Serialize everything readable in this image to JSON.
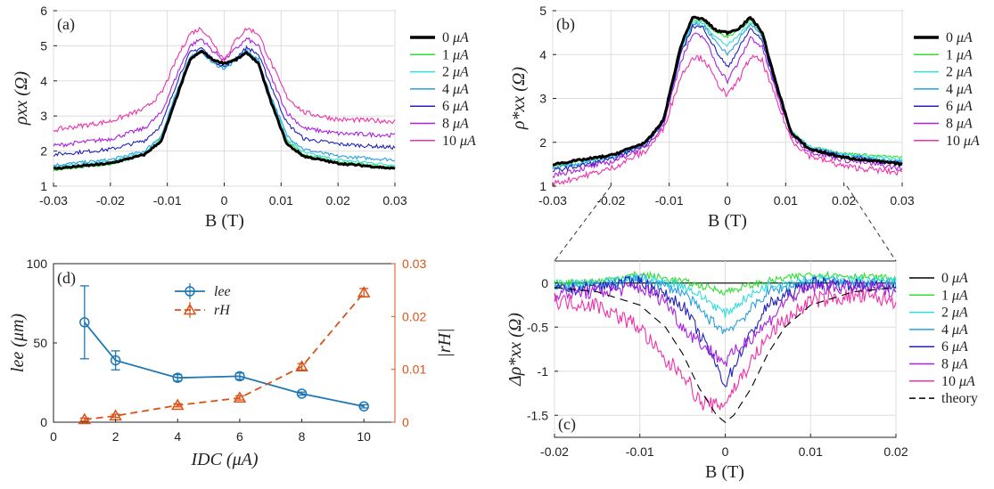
{
  "colors": {
    "c0": "#000000",
    "c1": "#33dd33",
    "c2": "#33dddd",
    "c4": "#2a9fdc",
    "c6": "#2222bb",
    "c8": "#aa22dd",
    "c10": "#ee33aa",
    "theory": "#000000",
    "lee": "#1f77b4",
    "rH": "#d95319",
    "grid": "#dddddd",
    "axis": "#222222"
  },
  "chart_data": [
    {
      "id": "a",
      "type": "line",
      "panel_label": "(a)",
      "xlabel": "B (T)",
      "ylabel": "ρxx (Ω)",
      "xlim": [
        -0.03,
        0.03
      ],
      "ylim": [
        1,
        6
      ],
      "xticks": [
        "-0.03",
        "-0.02",
        "-0.01",
        "0",
        "0.01",
        "0.02",
        "0.03"
      ],
      "yticks": [
        "1",
        "2",
        "3",
        "4",
        "5",
        "6"
      ],
      "series": [
        {
          "name": "0 μA",
          "label_num": "0",
          "label_unit": "μA",
          "color_key": "c0",
          "bold": true,
          "x": [
            -0.03,
            -0.02,
            -0.014,
            -0.011,
            -0.008,
            -0.006,
            -0.004,
            -0.002,
            0,
            0.002,
            0.004,
            0.006,
            0.008,
            0.011,
            0.014,
            0.02,
            0.03
          ],
          "y": [
            1.5,
            1.65,
            1.9,
            2.3,
            3.7,
            4.6,
            4.85,
            4.6,
            4.5,
            4.6,
            4.8,
            4.5,
            3.5,
            2.2,
            1.85,
            1.65,
            1.5
          ]
        },
        {
          "name": "1 μA",
          "label_num": "1",
          "label_unit": "μA",
          "color_key": "c1",
          "x": [
            -0.03,
            -0.02,
            -0.014,
            -0.011,
            -0.008,
            -0.006,
            -0.004,
            -0.002,
            0,
            0.002,
            0.004,
            0.006,
            0.008,
            0.011,
            0.014,
            0.02,
            0.03
          ],
          "y": [
            1.45,
            1.62,
            1.9,
            2.35,
            3.75,
            4.6,
            4.82,
            4.6,
            4.5,
            4.62,
            4.85,
            4.55,
            3.6,
            2.3,
            1.9,
            1.7,
            1.55
          ]
        },
        {
          "name": "2 μA",
          "label_num": "2",
          "label_unit": "μA",
          "color_key": "c2",
          "x": [
            -0.03,
            -0.02,
            -0.014,
            -0.011,
            -0.008,
            -0.006,
            -0.004,
            -0.002,
            0,
            0.002,
            0.004,
            0.006,
            0.008,
            0.011,
            0.014,
            0.02,
            0.03
          ],
          "y": [
            1.55,
            1.7,
            1.95,
            2.4,
            3.8,
            4.65,
            4.85,
            4.55,
            4.4,
            4.6,
            4.85,
            4.55,
            3.6,
            2.35,
            1.95,
            1.75,
            1.6
          ]
        },
        {
          "name": "4 μA",
          "label_num": "4",
          "label_unit": "μA",
          "color_key": "c4",
          "x": [
            -0.03,
            -0.02,
            -0.014,
            -0.011,
            -0.008,
            -0.006,
            -0.004,
            -0.002,
            0,
            0.002,
            0.004,
            0.006,
            0.008,
            0.011,
            0.014,
            0.02,
            0.03
          ],
          "y": [
            1.6,
            1.75,
            2.0,
            2.45,
            3.85,
            4.7,
            4.85,
            4.5,
            4.35,
            4.55,
            4.85,
            4.6,
            3.65,
            2.45,
            2.05,
            1.85,
            1.75
          ]
        },
        {
          "name": "6 μA",
          "label_num": "6",
          "label_unit": "μA",
          "color_key": "c6",
          "x": [
            -0.03,
            -0.02,
            -0.014,
            -0.011,
            -0.008,
            -0.006,
            -0.004,
            -0.002,
            0,
            0.002,
            0.004,
            0.006,
            0.008,
            0.011,
            0.014,
            0.02,
            0.03
          ],
          "y": [
            1.9,
            2.05,
            2.3,
            2.75,
            4.1,
            4.8,
            4.95,
            4.6,
            4.4,
            4.65,
            4.95,
            4.75,
            3.95,
            2.8,
            2.35,
            2.2,
            2.1
          ]
        },
        {
          "name": "8 μA",
          "label_num": "8",
          "label_unit": "μA",
          "color_key": "c8",
          "x": [
            -0.03,
            -0.02,
            -0.014,
            -0.011,
            -0.008,
            -0.006,
            -0.004,
            -0.002,
            0,
            0.002,
            0.004,
            0.006,
            0.008,
            0.011,
            0.014,
            0.02,
            0.03
          ],
          "y": [
            2.15,
            2.35,
            2.65,
            3.1,
            4.3,
            5.0,
            5.2,
            4.85,
            4.6,
            4.9,
            5.2,
            5.0,
            4.2,
            3.1,
            2.65,
            2.5,
            2.45
          ]
        },
        {
          "name": "10 μA",
          "label_num": "10",
          "label_unit": "μA",
          "color_key": "c10",
          "x": [
            -0.03,
            -0.02,
            -0.014,
            -0.011,
            -0.008,
            -0.006,
            -0.004,
            -0.002,
            0,
            0.002,
            0.004,
            0.006,
            0.008,
            0.011,
            0.014,
            0.02,
            0.03
          ],
          "y": [
            2.6,
            2.85,
            3.2,
            3.65,
            4.75,
            5.35,
            5.5,
            5.1,
            4.6,
            5.15,
            5.5,
            5.35,
            4.6,
            3.55,
            3.1,
            2.9,
            2.85
          ]
        }
      ]
    },
    {
      "id": "b",
      "type": "line",
      "panel_label": "(b)",
      "xlabel": "B (T)",
      "ylabel": "ρ*xx (Ω)",
      "xlim": [
        -0.03,
        0.03
      ],
      "ylim": [
        1,
        5
      ],
      "xticks": [
        "-0.03",
        "-0.02",
        "-0.01",
        "0",
        "0.01",
        "0.02",
        "0.03"
      ],
      "yticks": [
        "1",
        "2",
        "3",
        "4",
        "5"
      ],
      "series": [
        {
          "name": "0 μA",
          "label_num": "0",
          "label_unit": "μA",
          "color_key": "c0",
          "bold": true,
          "x": [
            -0.03,
            -0.02,
            -0.014,
            -0.011,
            -0.008,
            -0.006,
            -0.004,
            -0.002,
            0,
            0.002,
            0.004,
            0.006,
            0.008,
            0.011,
            0.014,
            0.02,
            0.03
          ],
          "y": [
            1.5,
            1.7,
            2.0,
            2.5,
            4.2,
            4.85,
            4.8,
            4.55,
            4.5,
            4.6,
            4.85,
            4.5,
            3.5,
            2.2,
            1.85,
            1.65,
            1.5
          ]
        },
        {
          "name": "1 μA",
          "label_num": "1",
          "label_unit": "μA",
          "color_key": "c1",
          "x": [
            -0.03,
            -0.02,
            -0.014,
            -0.011,
            -0.008,
            -0.006,
            -0.004,
            -0.002,
            0,
            0.002,
            0.004,
            0.006,
            0.008,
            0.011,
            0.014,
            0.02,
            0.03
          ],
          "y": [
            1.45,
            1.7,
            2.0,
            2.5,
            4.15,
            4.8,
            4.75,
            4.5,
            4.4,
            4.55,
            4.8,
            4.45,
            3.5,
            2.25,
            1.9,
            1.75,
            1.65
          ]
        },
        {
          "name": "2 μA",
          "label_num": "2",
          "label_unit": "μA",
          "color_key": "c2",
          "x": [
            -0.03,
            -0.02,
            -0.014,
            -0.011,
            -0.008,
            -0.006,
            -0.004,
            -0.002,
            0,
            0.002,
            0.004,
            0.006,
            0.008,
            0.011,
            0.014,
            0.02,
            0.03
          ],
          "y": [
            1.4,
            1.65,
            1.98,
            2.48,
            4.1,
            4.75,
            4.7,
            4.4,
            4.2,
            4.45,
            4.75,
            4.45,
            3.5,
            2.25,
            1.9,
            1.72,
            1.6
          ]
        },
        {
          "name": "4 μA",
          "label_num": "4",
          "label_unit": "μA",
          "color_key": "c4",
          "x": [
            -0.03,
            -0.02,
            -0.014,
            -0.011,
            -0.008,
            -0.006,
            -0.004,
            -0.002,
            0,
            0.002,
            0.004,
            0.006,
            0.008,
            0.011,
            0.014,
            0.02,
            0.03
          ],
          "y": [
            1.4,
            1.65,
            1.95,
            2.45,
            4.05,
            4.7,
            4.65,
            4.3,
            4.0,
            4.35,
            4.7,
            4.4,
            3.45,
            2.2,
            1.88,
            1.7,
            1.55
          ]
        },
        {
          "name": "6 μA",
          "label_num": "6",
          "label_unit": "μA",
          "color_key": "c6",
          "x": [
            -0.03,
            -0.02,
            -0.014,
            -0.011,
            -0.008,
            -0.006,
            -0.004,
            -0.002,
            0,
            0.002,
            0.004,
            0.006,
            0.008,
            0.011,
            0.014,
            0.02,
            0.03
          ],
          "y": [
            1.35,
            1.6,
            1.95,
            2.45,
            4.0,
            4.65,
            4.6,
            4.1,
            3.7,
            4.15,
            4.6,
            4.3,
            3.4,
            2.2,
            1.85,
            1.68,
            1.5
          ]
        },
        {
          "name": "8 μA",
          "label_num": "8",
          "label_unit": "μA",
          "color_key": "c8",
          "x": [
            -0.03,
            -0.02,
            -0.014,
            -0.011,
            -0.008,
            -0.006,
            -0.004,
            -0.002,
            0,
            0.002,
            0.004,
            0.006,
            0.008,
            0.011,
            0.014,
            0.02,
            0.03
          ],
          "y": [
            1.25,
            1.55,
            1.9,
            2.4,
            3.85,
            4.45,
            4.4,
            3.8,
            3.4,
            3.85,
            4.4,
            4.15,
            3.3,
            2.15,
            1.8,
            1.6,
            1.4
          ]
        },
        {
          "name": "10 μA",
          "label_num": "10",
          "label_unit": "μA",
          "color_key": "c10",
          "x": [
            -0.03,
            -0.02,
            -0.014,
            -0.011,
            -0.008,
            -0.006,
            -0.004,
            -0.002,
            0,
            0.002,
            0.004,
            0.006,
            0.008,
            0.011,
            0.014,
            0.02,
            0.03
          ],
          "y": [
            1.05,
            1.4,
            1.8,
            2.3,
            3.5,
            3.95,
            3.9,
            3.4,
            3.05,
            3.45,
            3.95,
            3.85,
            3.1,
            2.05,
            1.7,
            1.45,
            1.3
          ]
        }
      ]
    },
    {
      "id": "c",
      "type": "line",
      "panel_label": "(c)",
      "xlabel": "B (T)",
      "ylabel": "Δρ*xx (Ω)",
      "xlim": [
        -0.02,
        0.02
      ],
      "ylim": [
        -1.75,
        0.25
      ],
      "xticks": [
        "-0.02",
        "-0.01",
        "0",
        "0.01",
        "0.02"
      ],
      "yticks": [
        "-1.5",
        "-1",
        "-0.5",
        "0"
      ],
      "series": [
        {
          "name": "0 μA",
          "label_num": "0",
          "label_unit": "μA",
          "color_key": "c0",
          "x": [
            -0.02,
            -0.01,
            0,
            0.01,
            0.02
          ],
          "y": [
            0,
            0,
            0,
            0,
            0
          ]
        },
        {
          "name": "1 μA",
          "label_num": "1",
          "label_unit": "μA",
          "color_key": "c1",
          "x": [
            -0.02,
            -0.015,
            -0.01,
            -0.005,
            -0.002,
            0,
            0.002,
            0.005,
            0.01,
            0.015,
            0.02
          ],
          "y": [
            0.0,
            0.02,
            0.1,
            0.02,
            -0.05,
            -0.1,
            -0.05,
            0.02,
            0.1,
            0.08,
            0.05
          ]
        },
        {
          "name": "2 μA",
          "label_num": "2",
          "label_unit": "μA",
          "color_key": "c2",
          "x": [
            -0.02,
            -0.015,
            -0.01,
            -0.005,
            -0.002,
            0,
            0.002,
            0.005,
            0.01,
            0.015,
            0.02
          ],
          "y": [
            -0.02,
            0.0,
            0.05,
            -0.02,
            -0.2,
            -0.35,
            -0.2,
            -0.02,
            0.05,
            0.03,
            0.02
          ]
        },
        {
          "name": "4 μA",
          "label_num": "4",
          "label_unit": "μA",
          "color_key": "c4",
          "x": [
            -0.02,
            -0.015,
            -0.01,
            -0.005,
            -0.002,
            0,
            0.002,
            0.005,
            0.01,
            0.015,
            0.02
          ],
          "y": [
            -0.05,
            -0.03,
            0.05,
            -0.1,
            -0.4,
            -0.55,
            -0.4,
            -0.1,
            0.02,
            0.0,
            -0.02
          ]
        },
        {
          "name": "6 μA",
          "label_num": "6",
          "label_unit": "μA",
          "color_key": "c6",
          "x": [
            -0.02,
            -0.015,
            -0.01,
            -0.005,
            -0.002,
            0,
            0.002,
            0.005,
            0.01,
            0.015,
            0.02
          ],
          "y": [
            -0.08,
            -0.05,
            0.02,
            -0.25,
            -0.75,
            -1.15,
            -0.75,
            -0.25,
            0.0,
            -0.02,
            -0.05
          ]
        },
        {
          "name": "8 μA",
          "label_num": "8",
          "label_unit": "μA",
          "color_key": "c8",
          "x": [
            -0.02,
            -0.015,
            -0.01,
            -0.007,
            -0.005,
            -0.002,
            0,
            0.002,
            0.005,
            0.007,
            0.01,
            0.015,
            0.02
          ],
          "y": [
            -0.12,
            -0.1,
            -0.05,
            -0.2,
            -0.5,
            -0.75,
            -0.9,
            -0.7,
            -0.45,
            -0.2,
            -0.05,
            -0.05,
            -0.08
          ]
        },
        {
          "name": "10 μA",
          "label_num": "10",
          "label_unit": "μA",
          "color_key": "c10",
          "x": [
            -0.02,
            -0.015,
            -0.01,
            -0.007,
            -0.005,
            -0.003,
            -0.001,
            0,
            0.002,
            0.004,
            0.006,
            0.01,
            0.015,
            0.02
          ],
          "y": [
            -0.2,
            -0.25,
            -0.5,
            -0.9,
            -1.0,
            -1.35,
            -1.4,
            -1.35,
            -1.05,
            -0.75,
            -0.5,
            -0.2,
            -0.15,
            -0.2
          ]
        },
        {
          "name": "theory",
          "label_num": "",
          "label_unit": "theory",
          "color_key": "theory",
          "dashed": true,
          "x": [
            -0.02,
            -0.015,
            -0.01,
            -0.007,
            -0.005,
            -0.003,
            -0.001,
            0,
            0.001,
            0.003,
            0.005,
            0.007,
            0.01,
            0.015,
            0.02
          ],
          "y": [
            -0.05,
            -0.1,
            -0.25,
            -0.5,
            -0.8,
            -1.2,
            -1.5,
            -1.58,
            -1.5,
            -1.2,
            -0.8,
            -0.5,
            -0.25,
            -0.1,
            -0.05
          ]
        }
      ]
    },
    {
      "id": "d",
      "type": "line",
      "panel_label": "(d)",
      "xlabel": "IDC (μA)",
      "ylabel": "lee (μm)",
      "y2label": "|rH|",
      "xlim": [
        0,
        11
      ],
      "ylim": [
        0,
        100
      ],
      "y2lim": [
        0,
        0.03
      ],
      "xticks": [
        "0",
        "2",
        "4",
        "6",
        "8",
        "10"
      ],
      "yticks": [
        "0",
        "50",
        "100"
      ],
      "y2ticks": [
        "0",
        "0.01",
        "0.02",
        "0.03"
      ],
      "series": [
        {
          "name": "lee",
          "legend": "lee",
          "color_key": "lee",
          "marker": "circle",
          "axis": "left",
          "x": [
            1,
            2,
            4,
            6,
            8,
            10
          ],
          "y": [
            63,
            39,
            28,
            29,
            18,
            10
          ],
          "err": [
            23,
            6,
            2,
            2,
            1,
            1
          ]
        },
        {
          "name": "rH",
          "legend": "rH",
          "color_key": "rH",
          "marker": "triangle",
          "axis": "right",
          "dashed": true,
          "x": [
            1,
            2,
            4,
            6,
            8,
            10
          ],
          "y": [
            0.0005,
            0.0012,
            0.0032,
            0.0046,
            0.0105,
            0.0245
          ],
          "err": [
            0.0003,
            0.0003,
            0.0003,
            0.0004,
            0.0006,
            0.0008
          ]
        }
      ]
    }
  ]
}
